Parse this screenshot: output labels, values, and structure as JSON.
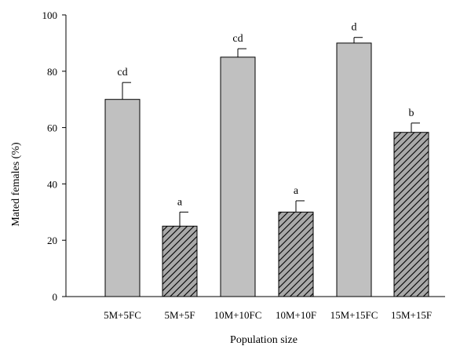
{
  "chart_data": {
    "type": "bar",
    "categories": [
      "5M+5FC",
      "5M+5F",
      "10M+10FC",
      "10M+10F",
      "15M+15FC",
      "15M+15F"
    ],
    "values": [
      70,
      25,
      85,
      30,
      90,
      58.3
    ],
    "errors": [
      6,
      5,
      3,
      4,
      2,
      3.3
    ],
    "significance_labels": [
      "cd",
      "a",
      "cd",
      "a",
      "d",
      "b"
    ],
    "fill_patterns": [
      "solid",
      "hatched",
      "solid",
      "hatched",
      "solid",
      "hatched"
    ],
    "colors": {
      "solid_fill": "#c0c0c0",
      "hatch_bg": "#a9a9a9",
      "hatch_line": "#000000",
      "outline": "#000000"
    },
    "title": "",
    "xlabel": "Population size",
    "ylabel": "Mated females (%)",
    "ylim": [
      0,
      100
    ],
    "yticks": [
      0,
      20,
      40,
      60,
      80,
      100
    ],
    "grid": false,
    "legend": "none"
  }
}
